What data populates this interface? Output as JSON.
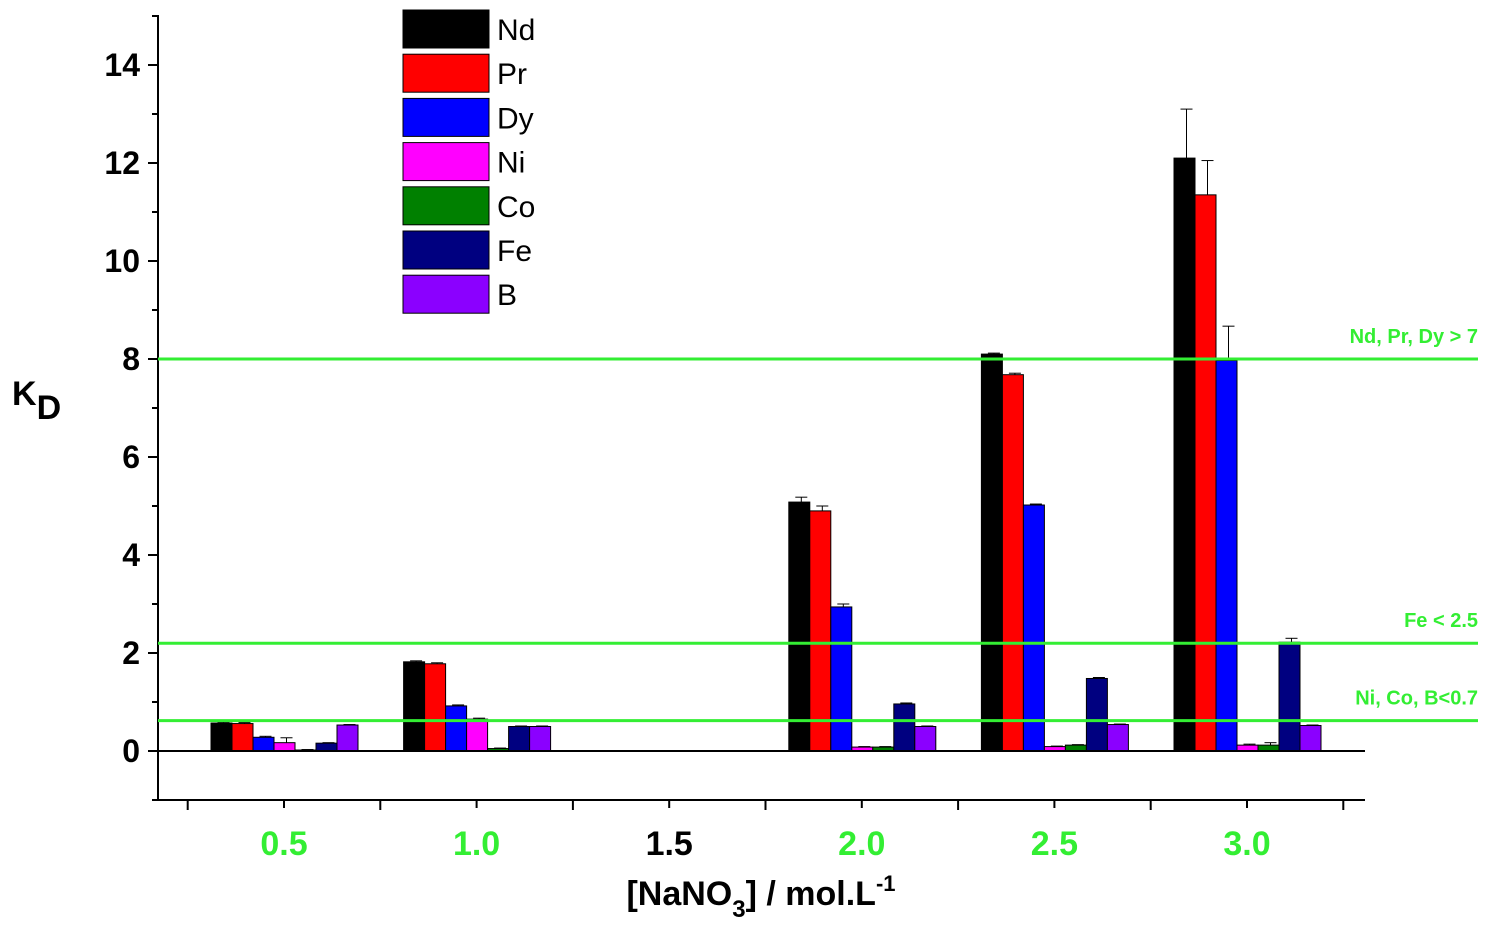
{
  "chart_data": {
    "type": "bar",
    "categories": [
      "0.5",
      "1.0",
      "1.5",
      "2.0",
      "2.5",
      "3.0"
    ],
    "category_colors": [
      "#33ee33",
      "#33ee33",
      "#000000",
      "#33ee33",
      "#33ee33",
      "#33ee33"
    ],
    "ylabel_main": "K",
    "ylabel_sub": "D",
    "xlabel_pre": "[NaNO",
    "xlabel_sub": "3",
    "xlabel_mid": "] / mol.L",
    "xlabel_sup": "-1",
    "ylim": [
      -1,
      15
    ],
    "yticks": [
      0,
      2,
      4,
      6,
      8,
      10,
      12,
      14
    ],
    "legend_position": "top-left",
    "grid": false,
    "series": [
      {
        "name": "Nd",
        "color": "#000000",
        "values": [
          0.57,
          1.82,
          null,
          5.08,
          8.1,
          12.1
        ],
        "errors": [
          0.02,
          0.02,
          null,
          0.1,
          0.02,
          1.0
        ]
      },
      {
        "name": "Pr",
        "color": "#ff0000",
        "values": [
          0.56,
          1.78,
          null,
          4.9,
          7.68,
          11.35
        ],
        "errors": [
          0.02,
          0.02,
          null,
          0.1,
          0.03,
          0.7
        ]
      },
      {
        "name": "Dy",
        "color": "#0000ff",
        "values": [
          0.28,
          0.92,
          null,
          2.94,
          5.02,
          7.97
        ],
        "errors": [
          0.02,
          0.02,
          null,
          0.06,
          0.02,
          0.7
        ]
      },
      {
        "name": "Ni",
        "color": "#ff00ff",
        "values": [
          0.17,
          0.65,
          null,
          0.08,
          0.09,
          0.12
        ],
        "errors": [
          0.1,
          0.02,
          null,
          0.01,
          0.01,
          0.02
        ]
      },
      {
        "name": "Co",
        "color": "#008000",
        "values": [
          0.02,
          0.05,
          null,
          0.08,
          0.12,
          0.12
        ],
        "errors": [
          0.01,
          0.01,
          null,
          0.01,
          0.01,
          0.05
        ]
      },
      {
        "name": "Fe",
        "color": "#000080",
        "values": [
          0.16,
          0.5,
          null,
          0.96,
          1.48,
          2.22
        ],
        "errors": [
          0.01,
          0.01,
          null,
          0.02,
          0.02,
          0.08
        ]
      },
      {
        "name": "B",
        "color": "#8b00ff",
        "values": [
          0.53,
          0.5,
          null,
          0.5,
          0.54,
          0.52
        ],
        "errors": [
          0.01,
          0.01,
          null,
          0.01,
          0.01,
          0.01
        ]
      }
    ],
    "thresholds": [
      {
        "value": 8.0,
        "label": "Nd, Pr, Dy > 7"
      },
      {
        "value": 2.2,
        "label": "Fe < 2.5"
      },
      {
        "value": 0.62,
        "label": "Ni, Co, B<0.7"
      }
    ],
    "threshold_color": "#33ee33"
  }
}
